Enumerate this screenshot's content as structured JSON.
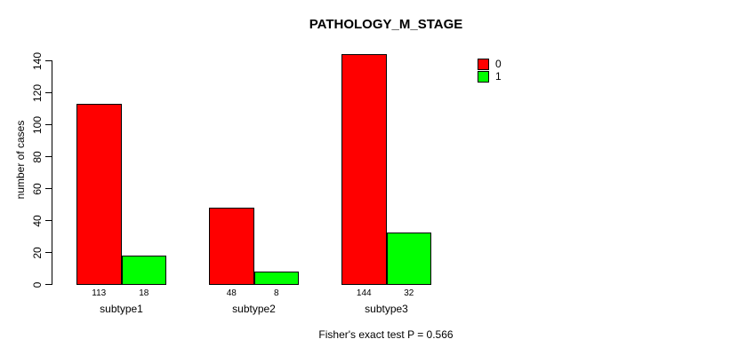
{
  "chart_data": {
    "type": "bar",
    "title": "PATHOLOGY_M_STAGE",
    "categories": [
      "subtype1",
      "subtype2",
      "subtype3"
    ],
    "series": [
      {
        "name": "0",
        "color": "#FF0000",
        "values": [
          113,
          48,
          144
        ]
      },
      {
        "name": "1",
        "color": "#00FF00",
        "values": [
          18,
          8,
          32
        ]
      }
    ],
    "bar_value_labels": [
      [
        113,
        18
      ],
      [
        48,
        8
      ],
      [
        144,
        32
      ]
    ],
    "xlabel": "",
    "ylabel": "number of cases",
    "ylim": [
      0,
      140
    ],
    "yticks": [
      0,
      20,
      40,
      60,
      80,
      100,
      120,
      140
    ],
    "grid": false,
    "legend_position": "top-right",
    "annotation": "Fisher's exact test P = 0.566"
  },
  "colors": {
    "series_0": "#FF0000",
    "series_1": "#00FF00",
    "axis": "#000000",
    "text": "#000000",
    "background": "#FFFFFF"
  }
}
